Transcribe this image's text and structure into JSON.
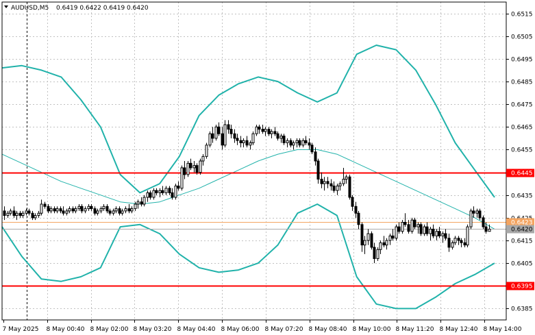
{
  "symbol_bar": {
    "symbol": "AUDUSD,M5",
    "ohlc": "0.6419 0.6422 0.6419 0.6420"
  },
  "colors": {
    "background": "#ffffff",
    "grid": "#c0c0c0",
    "candle": "#000000",
    "bollinger": "#20b2aa",
    "moving_average": "#20b2aa",
    "support_resistance": "#ff0000",
    "bid_line": "#a9a9a9",
    "ask_line": "#f4a460"
  },
  "icons": {
    "menu": "triangle-down-icon"
  },
  "chart_data": {
    "type": "candlestick",
    "title": "AUDUSD,M5",
    "ylim": [
      0.638,
      0.652
    ],
    "y_ticks": [
      "0.6515",
      "0.6505",
      "0.6495",
      "0.6485",
      "0.6475",
      "0.6465",
      "0.6455",
      "0.6435",
      "0.6425",
      "0.6415",
      "0.6405",
      "0.6385"
    ],
    "x_ticks": [
      "7 May 2025",
      "8 May 00:40",
      "8 May 02:00",
      "8 May 03:20",
      "8 May 04:40",
      "8 May 06:00",
      "8 May 07:20",
      "8 May 08:40",
      "8 May 10:00",
      "8 May 11:20",
      "8 May 12:40",
      "8 May 14:00"
    ],
    "grid": true,
    "horizontal_lines": [
      {
        "price": 0.6445,
        "label": "0.6445",
        "style": "red"
      },
      {
        "price": 0.6395,
        "label": "0.6395",
        "style": "red"
      }
    ],
    "price_labels": [
      {
        "price": 0.6423,
        "label": "0.6423",
        "style": "ask"
      },
      {
        "price": 0.642,
        "label": "0.6420",
        "style": "bid"
      }
    ],
    "candles": [
      [
        0.6428,
        0.643,
        0.6424,
        0.6426
      ],
      [
        0.6426,
        0.6428,
        0.6425,
        0.6427
      ],
      [
        0.6427,
        0.6429,
        0.6426,
        0.6428
      ],
      [
        0.6428,
        0.643,
        0.6425,
        0.6426
      ],
      [
        0.6426,
        0.6428,
        0.6424,
        0.6427
      ],
      [
        0.6427,
        0.6428,
        0.6425,
        0.6426
      ],
      [
        0.6426,
        0.6428,
        0.6425,
        0.6427
      ],
      [
        0.6427,
        0.6429,
        0.6426,
        0.6428
      ],
      [
        0.6428,
        0.6429,
        0.6426,
        0.6427
      ],
      [
        0.6427,
        0.6428,
        0.6424,
        0.6425
      ],
      [
        0.6425,
        0.6427,
        0.6424,
        0.6426
      ],
      [
        0.6426,
        0.6428,
        0.6425,
        0.6427
      ],
      [
        0.6427,
        0.6433,
        0.6426,
        0.6431
      ],
      [
        0.6431,
        0.6432,
        0.6429,
        0.643
      ],
      [
        0.643,
        0.6431,
        0.6427,
        0.6428
      ],
      [
        0.6428,
        0.643,
        0.6427,
        0.6429
      ],
      [
        0.6429,
        0.643,
        0.6427,
        0.6428
      ],
      [
        0.6428,
        0.643,
        0.6427,
        0.6429
      ],
      [
        0.6429,
        0.643,
        0.6427,
        0.6428
      ],
      [
        0.6428,
        0.643,
        0.6426,
        0.6427
      ],
      [
        0.6427,
        0.6429,
        0.6426,
        0.6428
      ],
      [
        0.6428,
        0.643,
        0.6427,
        0.6429
      ],
      [
        0.6429,
        0.643,
        0.6427,
        0.6428
      ],
      [
        0.6428,
        0.643,
        0.6427,
        0.6429
      ],
      [
        0.6429,
        0.6431,
        0.6428,
        0.643
      ],
      [
        0.643,
        0.6431,
        0.6427,
        0.6428
      ],
      [
        0.6428,
        0.643,
        0.6427,
        0.6429
      ],
      [
        0.6429,
        0.6431,
        0.6428,
        0.643
      ],
      [
        0.643,
        0.6431,
        0.6428,
        0.6429
      ],
      [
        0.6429,
        0.643,
        0.6426,
        0.6427
      ],
      [
        0.6427,
        0.6429,
        0.6426,
        0.6428
      ],
      [
        0.6428,
        0.643,
        0.6427,
        0.6429
      ],
      [
        0.6429,
        0.6431,
        0.6428,
        0.643
      ],
      [
        0.643,
        0.6431,
        0.6427,
        0.6428
      ],
      [
        0.6428,
        0.6429,
        0.6426,
        0.6427
      ],
      [
        0.6427,
        0.6429,
        0.6426,
        0.6428
      ],
      [
        0.6428,
        0.643,
        0.6427,
        0.6429
      ],
      [
        0.6429,
        0.643,
        0.6426,
        0.6427
      ],
      [
        0.6427,
        0.6429,
        0.6426,
        0.6428
      ],
      [
        0.6428,
        0.643,
        0.6427,
        0.6429
      ],
      [
        0.6429,
        0.6431,
        0.6427,
        0.6428
      ],
      [
        0.6428,
        0.643,
        0.6427,
        0.6429
      ],
      [
        0.6429,
        0.6432,
        0.6428,
        0.6431
      ],
      [
        0.6431,
        0.6433,
        0.6429,
        0.6432
      ],
      [
        0.6432,
        0.6434,
        0.643,
        0.6431
      ],
      [
        0.6431,
        0.6435,
        0.643,
        0.6434
      ],
      [
        0.6434,
        0.6437,
        0.6432,
        0.6436
      ],
      [
        0.6436,
        0.6437,
        0.6433,
        0.6434
      ],
      [
        0.6434,
        0.6438,
        0.6433,
        0.6437
      ],
      [
        0.6437,
        0.6438,
        0.6435,
        0.6436
      ],
      [
        0.6436,
        0.6438,
        0.6434,
        0.6437
      ],
      [
        0.6437,
        0.6439,
        0.6435,
        0.6436
      ],
      [
        0.6436,
        0.6439,
        0.6435,
        0.6438
      ],
      [
        0.6438,
        0.6439,
        0.6435,
        0.6436
      ],
      [
        0.6436,
        0.6438,
        0.6433,
        0.6434
      ],
      [
        0.6434,
        0.644,
        0.6433,
        0.6439
      ],
      [
        0.6439,
        0.6441,
        0.6437,
        0.6438
      ],
      [
        0.6438,
        0.6448,
        0.6437,
        0.6447
      ],
      [
        0.6447,
        0.645,
        0.6442,
        0.6444
      ],
      [
        0.6444,
        0.645,
        0.6443,
        0.6449
      ],
      [
        0.6449,
        0.6451,
        0.6446,
        0.6447
      ],
      [
        0.6447,
        0.645,
        0.6445,
        0.6448
      ],
      [
        0.6448,
        0.6449,
        0.6444,
        0.6445
      ],
      [
        0.6445,
        0.6451,
        0.6444,
        0.645
      ],
      [
        0.645,
        0.6453,
        0.6448,
        0.6452
      ],
      [
        0.6452,
        0.6458,
        0.6451,
        0.6457
      ],
      [
        0.6457,
        0.6463,
        0.6456,
        0.6462
      ],
      [
        0.6462,
        0.6465,
        0.6458,
        0.646
      ],
      [
        0.646,
        0.6466,
        0.6459,
        0.6465
      ],
      [
        0.6465,
        0.6467,
        0.6461,
        0.6462
      ],
      [
        0.6462,
        0.6465,
        0.6455,
        0.6457
      ],
      [
        0.6457,
        0.6468,
        0.6456,
        0.6466
      ],
      [
        0.6466,
        0.6468,
        0.6462,
        0.6464
      ],
      [
        0.6464,
        0.6466,
        0.646,
        0.6462
      ],
      [
        0.6462,
        0.6464,
        0.6458,
        0.646
      ],
      [
        0.646,
        0.6462,
        0.6457,
        0.6459
      ],
      [
        0.6459,
        0.6461,
        0.6456,
        0.6458
      ],
      [
        0.6458,
        0.646,
        0.6456,
        0.6459
      ],
      [
        0.6459,
        0.6461,
        0.6456,
        0.6457
      ],
      [
        0.6457,
        0.6459,
        0.6455,
        0.6458
      ],
      [
        0.6458,
        0.6463,
        0.6457,
        0.6462
      ],
      [
        0.6462,
        0.6466,
        0.6461,
        0.6465
      ],
      [
        0.6465,
        0.6466,
        0.6462,
        0.6464
      ],
      [
        0.6464,
        0.6466,
        0.6462,
        0.6463
      ],
      [
        0.6463,
        0.6465,
        0.6461,
        0.6464
      ],
      [
        0.6464,
        0.6465,
        0.6461,
        0.6462
      ],
      [
        0.6462,
        0.6464,
        0.646,
        0.6463
      ],
      [
        0.6463,
        0.6465,
        0.6461,
        0.6462
      ],
      [
        0.6462,
        0.6463,
        0.6459,
        0.646
      ],
      [
        0.646,
        0.6462,
        0.6458,
        0.6461
      ],
      [
        0.6461,
        0.6462,
        0.6457,
        0.6458
      ],
      [
        0.6458,
        0.646,
        0.6456,
        0.6459
      ],
      [
        0.6459,
        0.646,
        0.6456,
        0.6457
      ],
      [
        0.6457,
        0.6459,
        0.6455,
        0.6458
      ],
      [
        0.6458,
        0.646,
        0.6456,
        0.6459
      ],
      [
        0.6459,
        0.646,
        0.6456,
        0.6457
      ],
      [
        0.6457,
        0.646,
        0.6456,
        0.6459
      ],
      [
        0.6459,
        0.6461,
        0.6457,
        0.6458
      ],
      [
        0.6458,
        0.646,
        0.6455,
        0.6457
      ],
      [
        0.6457,
        0.6458,
        0.6453,
        0.6454
      ],
      [
        0.6454,
        0.6456,
        0.6448,
        0.645
      ],
      [
        0.645,
        0.6451,
        0.644,
        0.6442
      ],
      [
        0.6442,
        0.6445,
        0.6438,
        0.644
      ],
      [
        0.644,
        0.6443,
        0.6437,
        0.6441
      ],
      [
        0.6441,
        0.6443,
        0.6438,
        0.644
      ],
      [
        0.644,
        0.6442,
        0.6437,
        0.6439
      ],
      [
        0.6439,
        0.6441,
        0.6436,
        0.6437
      ],
      [
        0.6437,
        0.644,
        0.6435,
        0.6439
      ],
      [
        0.6439,
        0.6441,
        0.6437,
        0.644
      ],
      [
        0.644,
        0.6447,
        0.6439,
        0.6442
      ],
      [
        0.6442,
        0.6444,
        0.644,
        0.6443
      ],
      [
        0.6443,
        0.6444,
        0.6433,
        0.6434
      ],
      [
        0.6434,
        0.6435,
        0.6428,
        0.643
      ],
      [
        0.643,
        0.6432,
        0.6425,
        0.6427
      ],
      [
        0.6427,
        0.6428,
        0.642,
        0.6422
      ],
      [
        0.6422,
        0.6423,
        0.641,
        0.6413
      ],
      [
        0.6413,
        0.6417,
        0.6409,
        0.6415
      ],
      [
        0.6415,
        0.642,
        0.6413,
        0.6418
      ],
      [
        0.6418,
        0.6419,
        0.6411,
        0.6412
      ],
      [
        0.6412,
        0.6414,
        0.6405,
        0.6407
      ],
      [
        0.6407,
        0.6412,
        0.6406,
        0.6411
      ],
      [
        0.6411,
        0.6415,
        0.6409,
        0.6414
      ],
      [
        0.6414,
        0.6417,
        0.6412,
        0.6413
      ],
      [
        0.6413,
        0.6416,
        0.6411,
        0.6415
      ],
      [
        0.6415,
        0.6418,
        0.6413,
        0.6417
      ],
      [
        0.6417,
        0.642,
        0.6415,
        0.6416
      ],
      [
        0.6416,
        0.6422,
        0.6415,
        0.6421
      ],
      [
        0.6421,
        0.6423,
        0.6418,
        0.6419
      ],
      [
        0.6419,
        0.6424,
        0.6418,
        0.6423
      ],
      [
        0.6423,
        0.6427,
        0.6421,
        0.6422
      ],
      [
        0.6422,
        0.6424,
        0.6418,
        0.6419
      ],
      [
        0.6419,
        0.6425,
        0.6418,
        0.6424
      ],
      [
        0.6424,
        0.6425,
        0.642,
        0.6421
      ],
      [
        0.6421,
        0.6423,
        0.6418,
        0.6422
      ],
      [
        0.6422,
        0.6423,
        0.6417,
        0.6418
      ],
      [
        0.6418,
        0.6422,
        0.6417,
        0.6421
      ],
      [
        0.6421,
        0.6423,
        0.6417,
        0.6418
      ],
      [
        0.6418,
        0.6421,
        0.6415,
        0.642
      ],
      [
        0.642,
        0.6422,
        0.6416,
        0.6417
      ],
      [
        0.6417,
        0.642,
        0.6415,
        0.6419
      ],
      [
        0.6419,
        0.6421,
        0.6416,
        0.6417
      ],
      [
        0.6417,
        0.6419,
        0.6414,
        0.6418
      ],
      [
        0.6418,
        0.642,
        0.6415,
        0.6416
      ],
      [
        0.6416,
        0.6418,
        0.641,
        0.6412
      ],
      [
        0.6412,
        0.6415,
        0.6411,
        0.6414
      ],
      [
        0.6414,
        0.6417,
        0.6413,
        0.6416
      ],
      [
        0.6416,
        0.6417,
        0.6413,
        0.6415
      ],
      [
        0.6415,
        0.6416,
        0.6412,
        0.6414
      ],
      [
        0.6414,
        0.6416,
        0.6412,
        0.6413
      ],
      [
        0.6413,
        0.6422,
        0.6412,
        0.6421
      ],
      [
        0.6421,
        0.6429,
        0.642,
        0.6428
      ],
      [
        0.6428,
        0.643,
        0.6425,
        0.6427
      ],
      [
        0.6427,
        0.6429,
        0.6425,
        0.6428
      ],
      [
        0.6428,
        0.6429,
        0.6424,
        0.6425
      ],
      [
        0.6425,
        0.6426,
        0.642,
        0.6421
      ],
      [
        0.6421,
        0.6423,
        0.6418,
        0.6419
      ],
      [
        0.6419,
        0.6422,
        0.6419,
        0.642
      ]
    ],
    "series": [
      {
        "name": "",
        "role": "bollinger-upper",
        "values": [
          0.6491,
          0.6492,
          0.649,
          0.6487,
          0.6477,
          0.6465,
          0.6444,
          0.6436,
          0.644,
          0.6452,
          0.647,
          0.6479,
          0.6484,
          0.6487,
          0.6485,
          0.648,
          0.6476,
          0.648,
          0.6497,
          0.6501,
          0.6499,
          0.649,
          0.6475,
          0.6458,
          0.6446,
          0.6434
        ]
      },
      {
        "name": "",
        "role": "moving-average",
        "values": [
          0.6453,
          0.6449,
          0.6445,
          0.6441,
          0.6438,
          0.6435,
          0.6432,
          0.6431,
          0.6432,
          0.6435,
          0.6438,
          0.6442,
          0.6446,
          0.645,
          0.6453,
          0.6455,
          0.6455,
          0.6453,
          0.6449,
          0.6445,
          0.6441,
          0.6437,
          0.6433,
          0.6429,
          0.6425,
          0.642
        ]
      },
      {
        "name": "",
        "role": "bollinger-lower",
        "values": [
          0.6421,
          0.6408,
          0.6398,
          0.6397,
          0.6399,
          0.6403,
          0.6421,
          0.6422,
          0.6418,
          0.6409,
          0.6403,
          0.6401,
          0.6402,
          0.6405,
          0.6413,
          0.6427,
          0.6431,
          0.6426,
          0.6399,
          0.6387,
          0.6385,
          0.6385,
          0.639,
          0.6396,
          0.64,
          0.6405
        ]
      }
    ]
  }
}
